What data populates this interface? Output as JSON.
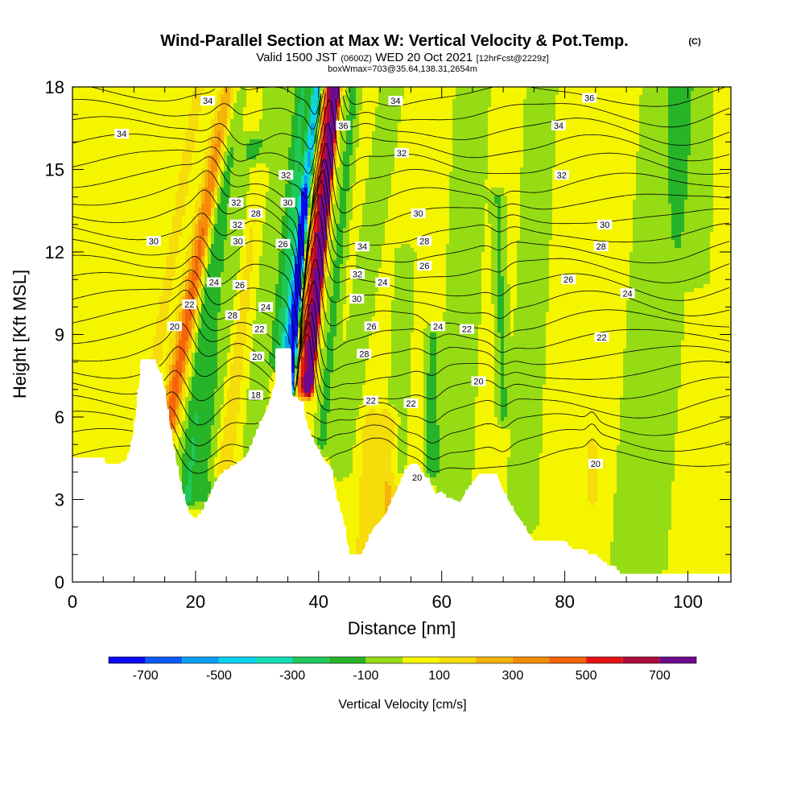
{
  "title": {
    "main": "Wind-Parallel Section at Max W: Vertical Velocity & Pot.Temp.",
    "copyright": "(C)",
    "valid_prefix": "Valid 1500 JST",
    "valid_z": "(0600Z)",
    "valid_date": "WED 20 Oct 2021",
    "forecast": "[12hrFcst@2229z]",
    "boxwmax": "boxWmax=703@35.64,138.31,2654m"
  },
  "chart_data": {
    "type": "heatmap",
    "xlabel": "Distance [nm]",
    "ylabel": "Height [Kft MSL]",
    "xlim": [
      0,
      107
    ],
    "ylim": [
      0,
      18
    ],
    "x_ticks": [
      "0",
      "20",
      "40",
      "60",
      "80",
      "100"
    ],
    "y_ticks": [
      "0",
      "3",
      "6",
      "9",
      "12",
      "15",
      "18"
    ],
    "colorbar": {
      "title": "Vertical Velocity [cm/s]",
      "labels": [
        "-700",
        "-500",
        "-300",
        "-100",
        "100",
        "300",
        "500",
        "700"
      ],
      "bins": [
        {
          "from": -800,
          "to": -700,
          "color": "#0a0af0"
        },
        {
          "from": -700,
          "to": -600,
          "color": "#0a5af5"
        },
        {
          "from": -600,
          "to": -500,
          "color": "#0aa0f5"
        },
        {
          "from": -500,
          "to": -400,
          "color": "#0ad2f5"
        },
        {
          "from": -400,
          "to": -300,
          "color": "#14dcb4"
        },
        {
          "from": -300,
          "to": -200,
          "color": "#1ec85a"
        },
        {
          "from": -200,
          "to": -100,
          "color": "#28b428"
        },
        {
          "from": -100,
          "to": 0,
          "color": "#96dc14"
        },
        {
          "from": 0,
          "to": 100,
          "color": "#f5f500"
        },
        {
          "from": 100,
          "to": 200,
          "color": "#f5dc0a"
        },
        {
          "from": 200,
          "to": 300,
          "color": "#f5b40a"
        },
        {
          "from": 300,
          "to": 400,
          "color": "#f58c0a"
        },
        {
          "from": 400,
          "to": 500,
          "color": "#f5640a"
        },
        {
          "from": 500,
          "to": 600,
          "color": "#e61414"
        },
        {
          "from": 600,
          "to": 700,
          "color": "#aa0a3c"
        },
        {
          "from": 700,
          "to": 800,
          "color": "#6e0a8c"
        }
      ]
    },
    "terrain_kft": [
      [
        0,
        4.5
      ],
      [
        2,
        4.5
      ],
      [
        5,
        4.5
      ],
      [
        5.5,
        4.3
      ],
      [
        8,
        4.3
      ],
      [
        9,
        4.5
      ],
      [
        10,
        5.5
      ],
      [
        11,
        7.5
      ],
      [
        11.2,
        8.1
      ],
      [
        13.5,
        8.1
      ],
      [
        13.8,
        7.8
      ],
      [
        14.5,
        7.5
      ],
      [
        15,
        7
      ],
      [
        15.5,
        6.2
      ],
      [
        16,
        5.5
      ],
      [
        17,
        4.2
      ],
      [
        18,
        3.2
      ],
      [
        19,
        2.5
      ],
      [
        20,
        2.3
      ],
      [
        21,
        2.5
      ],
      [
        22,
        3.0
      ],
      [
        23,
        3.5
      ],
      [
        24,
        3.9
      ],
      [
        26,
        4.2
      ],
      [
        28,
        4.5
      ],
      [
        29,
        4.9
      ],
      [
        30,
        5.5
      ],
      [
        31,
        6
      ],
      [
        32,
        6.5
      ],
      [
        33,
        7.3
      ],
      [
        33.2,
        8.5
      ],
      [
        35.5,
        8.5
      ],
      [
        35.7,
        6.8
      ],
      [
        37.5,
        6.5
      ],
      [
        38,
        5.8
      ],
      [
        39,
        5.2
      ],
      [
        40,
        4.8
      ],
      [
        41,
        4.4
      ],
      [
        42,
        4.2
      ],
      [
        43,
        3.0
      ],
      [
        44,
        2.3
      ],
      [
        45,
        1.0
      ],
      [
        47,
        1.0
      ],
      [
        48,
        1.5
      ],
      [
        49,
        2.0
      ],
      [
        50,
        2.2
      ],
      [
        51,
        2.5
      ],
      [
        52,
        3.0
      ],
      [
        53,
        3.5
      ],
      [
        54,
        4.0
      ],
      [
        55,
        4.3
      ],
      [
        56,
        4.3
      ],
      [
        57,
        3.9
      ],
      [
        58,
        3.7
      ],
      [
        59,
        3.2
      ],
      [
        60,
        3.3
      ],
      [
        61,
        3.0
      ],
      [
        62,
        3.0
      ],
      [
        63,
        2.9
      ],
      [
        64,
        3.3
      ],
      [
        65,
        3.6
      ],
      [
        66,
        3.9
      ],
      [
        67,
        3.9
      ],
      [
        69,
        3.9
      ],
      [
        70,
        3.3
      ],
      [
        71,
        2.9
      ],
      [
        72,
        2.5
      ],
      [
        73,
        2.2
      ],
      [
        74,
        1.8
      ],
      [
        75,
        1.5
      ],
      [
        76,
        1.5
      ],
      [
        78,
        1.5
      ],
      [
        80,
        1.5
      ],
      [
        81,
        1.2
      ],
      [
        83,
        1.2
      ],
      [
        84,
        1.0
      ],
      [
        85,
        1.0
      ],
      [
        86,
        0.8
      ],
      [
        87,
        0.6
      ],
      [
        88,
        0.6
      ],
      [
        89,
        0.3
      ],
      [
        90,
        0.3
      ],
      [
        107,
        0.3
      ]
    ],
    "w_features": [
      {
        "x": 13.5,
        "zb": 8,
        "zt": 18,
        "lean": 0.7,
        "w": 2.0,
        "amp": 70
      },
      {
        "x": 15.5,
        "zb": 5.5,
        "zt": 18,
        "lean": 0.8,
        "w": 1.4,
        "amp": 420
      },
      {
        "x": 18.5,
        "zb": 3,
        "zt": 18,
        "lean": 0.5,
        "w": 1.8,
        "amp": -230
      },
      {
        "x": 21.5,
        "zb": 3,
        "zt": 16,
        "lean": 0.6,
        "w": 2.0,
        "amp": -150
      },
      {
        "x": 24.5,
        "zb": 4,
        "zt": 15,
        "lean": 0.5,
        "w": 1.8,
        "amp": 170
      },
      {
        "x": 29,
        "zb": 4.5,
        "zt": 18,
        "lean": 0.3,
        "w": 2.5,
        "amp": -80
      },
      {
        "x": 33.5,
        "zb": 8,
        "zt": 18,
        "lean": 0.4,
        "w": 1.5,
        "amp": -250
      },
      {
        "x": 34.8,
        "zb": 8,
        "zt": 18,
        "lean": 0.5,
        "w": 0.8,
        "amp": -520
      },
      {
        "x": 35.6,
        "zb": 7,
        "zt": 14,
        "lean": 0.3,
        "w": 0.5,
        "amp": -780
      },
      {
        "x": 37.5,
        "zb": 7,
        "zt": 18,
        "lean": 0.4,
        "w": 1.1,
        "amp": 600
      },
      {
        "x": 38.6,
        "zb": 7,
        "zt": 18,
        "lean": 0.4,
        "w": 0.6,
        "amp": 720
      },
      {
        "x": 40.5,
        "zb": 5,
        "zt": 18,
        "lean": 0.4,
        "w": 1.2,
        "amp": -170
      },
      {
        "x": 43.5,
        "zb": 4,
        "zt": 18,
        "lean": 0.6,
        "w": 2.2,
        "amp": -90
      },
      {
        "x": 47.5,
        "zb": 1,
        "zt": 6,
        "lean": 0.2,
        "w": 1.5,
        "amp": 130
      },
      {
        "x": 51,
        "zb": 2,
        "zt": 6,
        "lean": 0.1,
        "w": 1.4,
        "amp": 180
      },
      {
        "x": 52.5,
        "zb": 4,
        "zt": 12,
        "lean": 0.2,
        "w": 2.0,
        "amp": -80
      },
      {
        "x": 58.5,
        "zb": 4,
        "zt": 9,
        "lean": 0,
        "w": 1.2,
        "amp": -180
      },
      {
        "x": 62,
        "zb": 3,
        "zt": 18,
        "lean": 0.2,
        "w": 3.5,
        "amp": -80
      },
      {
        "x": 70,
        "zb": 6,
        "zt": 14,
        "lean": -0.1,
        "w": 1.0,
        "amp": -150
      },
      {
        "x": 73,
        "zb": 2,
        "zt": 18,
        "lean": 0.2,
        "w": 3.0,
        "amp": -85
      },
      {
        "x": 84.5,
        "zb": 3,
        "zt": 5,
        "lean": 0,
        "w": 0.6,
        "amp": 150
      },
      {
        "x": 92,
        "zb": 0.5,
        "zt": 18,
        "lean": 0.3,
        "w": 5.0,
        "amp": -95
      },
      {
        "x": 100,
        "zb": 11,
        "zt": 18,
        "lean": 0,
        "w": 4.0,
        "amp": -85
      }
    ],
    "contour_labels": [
      {
        "text": "34",
        "x": 22.0,
        "y": 17.5
      },
      {
        "text": "34",
        "x": 8.0,
        "y": 16.3
      },
      {
        "text": "34",
        "x": 52.5,
        "y": 17.5
      },
      {
        "text": "36",
        "x": 44.0,
        "y": 16.6
      },
      {
        "text": "36",
        "x": 84.0,
        "y": 17.6
      },
      {
        "text": "34",
        "x": 79.0,
        "y": 16.6
      },
      {
        "text": "32",
        "x": 34.7,
        "y": 14.8
      },
      {
        "text": "30",
        "x": 35.0,
        "y": 13.8
      },
      {
        "text": "32",
        "x": 26.6,
        "y": 13.8
      },
      {
        "text": "32",
        "x": 53.5,
        "y": 15.6
      },
      {
        "text": "32",
        "x": 79.5,
        "y": 14.8
      },
      {
        "text": "30",
        "x": 13.2,
        "y": 12.4
      },
      {
        "text": "30",
        "x": 56.2,
        "y": 13.4
      },
      {
        "text": "30",
        "x": 86.5,
        "y": 13.0
      },
      {
        "text": "28",
        "x": 29.8,
        "y": 13.4
      },
      {
        "text": "28",
        "x": 57.2,
        "y": 12.4
      },
      {
        "text": "28",
        "x": 85.9,
        "y": 12.2
      },
      {
        "text": "26",
        "x": 34.2,
        "y": 12.3
      },
      {
        "text": "26",
        "x": 57.2,
        "y": 11.5
      },
      {
        "text": "26",
        "x": 80.6,
        "y": 11.0
      },
      {
        "text": "24",
        "x": 23.0,
        "y": 10.9
      },
      {
        "text": "24",
        "x": 31.4,
        "y": 10.0
      },
      {
        "text": "24",
        "x": 50.4,
        "y": 10.9
      },
      {
        "text": "24",
        "x": 59.4,
        "y": 9.3
      },
      {
        "text": "24",
        "x": 90.2,
        "y": 10.5
      },
      {
        "text": "22",
        "x": 19.0,
        "y": 10.1
      },
      {
        "text": "22",
        "x": 30.4,
        "y": 9.2
      },
      {
        "text": "22",
        "x": 64.1,
        "y": 9.2
      },
      {
        "text": "22",
        "x": 86.0,
        "y": 8.9
      },
      {
        "text": "22",
        "x": 48.5,
        "y": 6.6
      },
      {
        "text": "22",
        "x": 55.0,
        "y": 6.5
      },
      {
        "text": "20",
        "x": 16.6,
        "y": 9.3
      },
      {
        "text": "20",
        "x": 30.0,
        "y": 8.2
      },
      {
        "text": "20",
        "x": 66.0,
        "y": 7.3
      },
      {
        "text": "20",
        "x": 56.0,
        "y": 3.8
      },
      {
        "text": "20",
        "x": 85.0,
        "y": 4.3
      },
      {
        "text": "18",
        "x": 29.8,
        "y": 6.8
      },
      {
        "text": "32",
        "x": 26.8,
        "y": 13.0
      },
      {
        "text": "30",
        "x": 26.9,
        "y": 12.4
      },
      {
        "text": "28",
        "x": 26.0,
        "y": 9.7
      },
      {
        "text": "26",
        "x": 27.2,
        "y": 10.8
      },
      {
        "text": "26",
        "x": 48.6,
        "y": 9.3
      },
      {
        "text": "34",
        "x": 47.1,
        "y": 12.2
      },
      {
        "text": "32",
        "x": 46.3,
        "y": 11.2
      },
      {
        "text": "30",
        "x": 46.2,
        "y": 10.3
      },
      {
        "text": "28",
        "x": 47.4,
        "y": 8.3
      }
    ]
  }
}
